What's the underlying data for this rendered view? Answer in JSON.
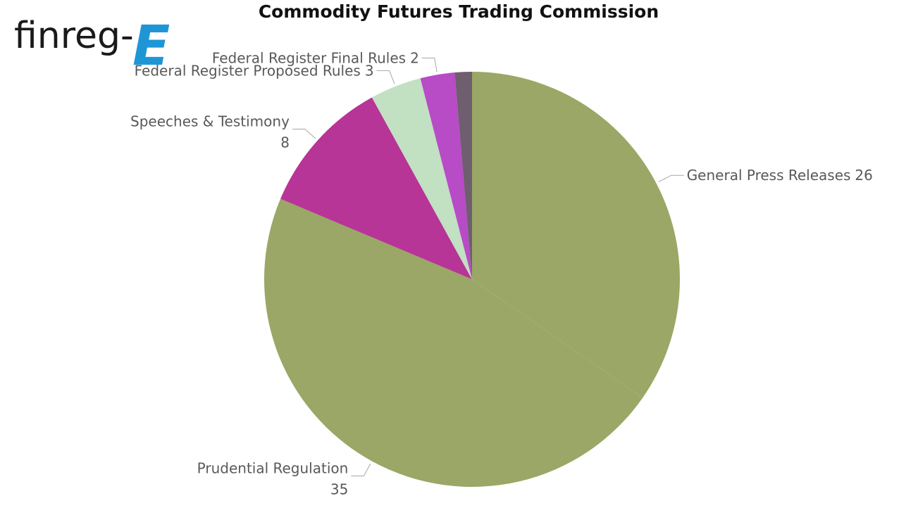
{
  "logo": {
    "text": "finreg-",
    "mark": "E"
  },
  "chart_data": {
    "type": "pie",
    "title": "Commodity Futures Trading Commission",
    "categories": [
      "General Press Releases",
      "Prudential Regulation",
      "Speeches & Testimony",
      "Federal Register Proposed Rules",
      "Federal Register Final Rules",
      null
    ],
    "values": [
      26,
      35,
      8,
      3,
      2,
      1
    ],
    "colors": [
      "#9aa766",
      "#9aa766",
      "#b73596",
      "#c2e0c2",
      "#b84bc6",
      "#6e5e6e"
    ]
  }
}
